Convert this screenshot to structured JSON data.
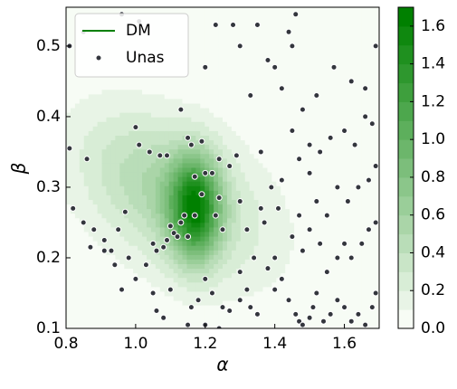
{
  "chart_data": {
    "type": "kde_scatter",
    "xlabel": "α",
    "ylabel": "β",
    "xlim": [
      0.8,
      1.7
    ],
    "ylim": [
      0.1,
      0.555
    ],
    "xticks": [
      {
        "value": 0.8,
        "label": "0.8"
      },
      {
        "value": 1.0,
        "label": "1.0"
      },
      {
        "value": 1.2,
        "label": "1.2"
      },
      {
        "value": 1.4,
        "label": "1.4"
      },
      {
        "value": 1.6,
        "label": "1.6"
      }
    ],
    "yticks": [
      {
        "value": 0.1,
        "label": "0.1"
      },
      {
        "value": 0.2,
        "label": "0.2"
      },
      {
        "value": 0.3,
        "label": "0.3"
      },
      {
        "value": 0.4,
        "label": "0.4"
      },
      {
        "value": 0.5,
        "label": "0.5"
      }
    ],
    "legend": "upper left",
    "series": [
      {
        "name": "DM",
        "kind": "kde",
        "color": "#008000",
        "components": [
          {
            "mean": [
              1.17,
              0.27
            ],
            "sd": [
              0.05,
              0.05
            ],
            "rho": 0,
            "amp": 1.25
          },
          {
            "mean": [
              1.08,
              0.3
            ],
            "sd": [
              0.17,
              0.075
            ],
            "rho": -0.4,
            "amp": 0.45
          },
          {
            "mean": [
              1.2,
              0.25
            ],
            "sd": [
              0.25,
              0.1
            ],
            "rho": -0.3,
            "amp": 0.1
          }
        ]
      },
      {
        "name": "Unas",
        "kind": "scatter",
        "color": "#33363d",
        "x": [
          1.17,
          1.2,
          1.16,
          1.19,
          1.22,
          1.19,
          1.14,
          1.23,
          1.17,
          1.1,
          1.11,
          1.09,
          1.12,
          1.05,
          1.06,
          1.08,
          1.13,
          1.15,
          1.24,
          1.25,
          1.0,
          1.01,
          1.04,
          1.07,
          1.09,
          1.13,
          1.15,
          1.24,
          1.27,
          1.29,
          0.81,
          0.86,
          0.82,
          0.85,
          0.88,
          0.91,
          0.93,
          0.95,
          0.97,
          0.87,
          0.91,
          0.94,
          0.96,
          0.98,
          1.0,
          1.03,
          1.05,
          1.06,
          1.08,
          1.1,
          1.16,
          1.18,
          1.2,
          1.22,
          1.25,
          1.27,
          1.3,
          1.32,
          1.33,
          1.35,
          1.15,
          1.2,
          1.24,
          1.3,
          1.34,
          1.32,
          1.38,
          1.4,
          1.42,
          1.44,
          1.46,
          1.47,
          1.48,
          1.5,
          1.51,
          1.52,
          1.54,
          1.56,
          1.58,
          1.6,
          1.62,
          1.64,
          1.66,
          1.68,
          1.69,
          1.55,
          1.58,
          1.6,
          1.62,
          1.65,
          1.67,
          1.69,
          1.5,
          1.53,
          1.48,
          1.45,
          1.47,
          1.52,
          1.55,
          1.58,
          1.61,
          1.64,
          1.67,
          1.69,
          1.5,
          1.47,
          1.45,
          1.5,
          1.53,
          1.56,
          1.6,
          1.63,
          1.66,
          1.68,
          1.42,
          1.48,
          1.52,
          1.57,
          1.62,
          1.66,
          1.69,
          1.45,
          1.4,
          1.38,
          1.35,
          1.3,
          1.28,
          1.23,
          1.2,
          0.96,
          1.01,
          0.81,
          0.85,
          1.46,
          1.44,
          1.33,
          1.36,
          1.39,
          1.41,
          1.36,
          1.42,
          1.4,
          1.37,
          1.3
        ],
        "y": [
          0.315,
          0.32,
          0.36,
          0.365,
          0.32,
          0.29,
          0.26,
          0.26,
          0.26,
          0.245,
          0.235,
          0.225,
          0.23,
          0.22,
          0.21,
          0.215,
          0.25,
          0.23,
          0.285,
          0.24,
          0.385,
          0.36,
          0.35,
          0.345,
          0.345,
          0.41,
          0.37,
          0.34,
          0.33,
          0.345,
          0.355,
          0.34,
          0.27,
          0.25,
          0.24,
          0.225,
          0.21,
          0.24,
          0.265,
          0.215,
          0.21,
          0.19,
          0.155,
          0.2,
          0.17,
          0.19,
          0.15,
          0.125,
          0.115,
          0.155,
          0.13,
          0.14,
          0.17,
          0.15,
          0.13,
          0.125,
          0.14,
          0.155,
          0.13,
          0.12,
          0.105,
          0.105,
          0.1,
          0.18,
          0.2,
          0.24,
          0.185,
          0.155,
          0.17,
          0.14,
          0.12,
          0.11,
          0.105,
          0.115,
          0.13,
          0.15,
          0.11,
          0.12,
          0.14,
          0.13,
          0.11,
          0.12,
          0.105,
          0.13,
          0.15,
          0.18,
          0.2,
          0.22,
          0.2,
          0.22,
          0.24,
          0.25,
          0.24,
          0.22,
          0.21,
          0.23,
          0.26,
          0.28,
          0.26,
          0.3,
          0.28,
          0.3,
          0.31,
          0.33,
          0.32,
          0.34,
          0.38,
          0.36,
          0.35,
          0.37,
          0.38,
          0.36,
          0.4,
          0.39,
          0.44,
          0.41,
          0.43,
          0.47,
          0.45,
          0.44,
          0.5,
          0.5,
          0.47,
          0.48,
          0.53,
          0.5,
          0.53,
          0.53,
          0.47,
          0.545,
          0.535,
          0.5,
          0.52,
          0.545,
          0.52,
          0.43,
          0.35,
          0.3,
          0.27,
          0.27,
          0.31,
          0.2,
          0.25,
          0.28
        ]
      }
    ],
    "colormap": [
      "#f7fcf5",
      "#008000"
    ],
    "levels": [
      0,
      0.1,
      0.2,
      0.3,
      0.4,
      0.5,
      0.6,
      0.7,
      0.8,
      0.9,
      1.0,
      1.1,
      1.2,
      1.3,
      1.4,
      1.5,
      1.6,
      1.7
    ],
    "colorbar_ticks": [
      {
        "value": 0,
        "label": "0.0"
      },
      {
        "value": 0.2,
        "label": "0.2"
      },
      {
        "value": 0.4,
        "label": "0.4"
      },
      {
        "value": 0.6,
        "label": "0.6"
      },
      {
        "value": 0.8,
        "label": "0.8"
      },
      {
        "value": 1.0,
        "label": "1.0"
      },
      {
        "value": 1.2,
        "label": "1.2"
      },
      {
        "value": 1.4,
        "label": "1.4"
      },
      {
        "value": 1.6,
        "label": "1.6"
      }
    ]
  }
}
